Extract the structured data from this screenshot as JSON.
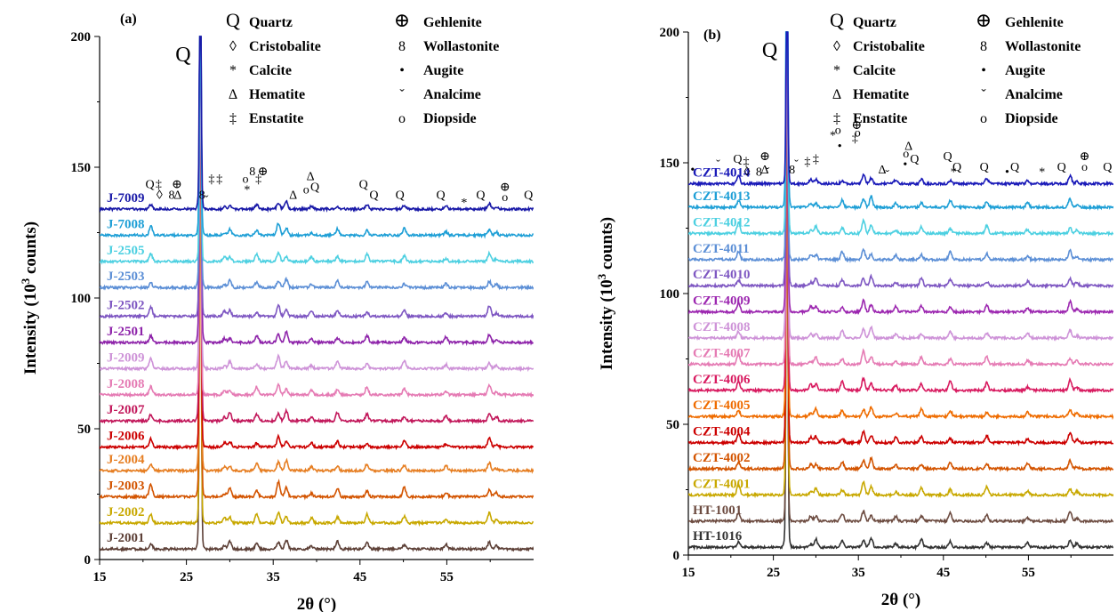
{
  "chart_data": [
    {
      "panel": "(a)",
      "type": "line",
      "xlabel": "2θ (°)",
      "ylabel_main": "Intensity (10",
      "ylabel_sup": "3",
      "ylabel_tail": " counts)",
      "xlim": [
        15,
        65
      ],
      "ylim": [
        0,
        200
      ],
      "xticks": [
        15,
        25,
        35,
        45,
        55
      ],
      "yticks": [
        0,
        50,
        100,
        150,
        200
      ],
      "big_peak_label": "Q",
      "series": [
        {
          "name": "J-2001",
          "offset": 4,
          "color": "#5d4037",
          "quartz": 1.0,
          "scale": 1.0
        },
        {
          "name": "J-2002",
          "offset": 14,
          "color": "#c8a800",
          "quartz": 0.8,
          "scale": 1.1
        },
        {
          "name": "J-2003",
          "offset": 24,
          "color": "#d35400",
          "quartz": 0.9,
          "scale": 1.2
        },
        {
          "name": "J-2004",
          "offset": 34,
          "color": "#e67e22",
          "quartz": 0.85,
          "scale": 1.0
        },
        {
          "name": "J-2006",
          "offset": 43,
          "color": "#cc0000",
          "quartz": 0.9,
          "scale": 0.9
        },
        {
          "name": "J-2007",
          "offset": 53,
          "color": "#c2185b",
          "quartz": 1.0,
          "scale": 1.1
        },
        {
          "name": "J-2008",
          "offset": 63,
          "color": "#e57bb4",
          "quartz": 0.8,
          "scale": 1.0
        },
        {
          "name": "J-2009",
          "offset": 73,
          "color": "#ce93d8",
          "quartz": 0.8,
          "scale": 1.0
        },
        {
          "name": "J-2501",
          "offset": 83,
          "color": "#8e24aa",
          "quartz": 0.9,
          "scale": 1.0
        },
        {
          "name": "J-2502",
          "offset": 93,
          "color": "#7e57c2",
          "quartz": 1.0,
          "scale": 1.0
        },
        {
          "name": "J-2503",
          "offset": 104,
          "color": "#5c8fd6",
          "quartz": 0.7,
          "scale": 0.9
        },
        {
          "name": "J-2505",
          "offset": 114,
          "color": "#4dd0e1",
          "quartz": 0.7,
          "scale": 0.9
        },
        {
          "name": "J-7008",
          "offset": 124,
          "color": "#1e9fd6",
          "quartz": 0.7,
          "scale": 0.9
        },
        {
          "name": "J-7009",
          "offset": 134,
          "color": "#1a1aa8",
          "quartz": 0.7,
          "scale": 0.7
        }
      ],
      "peaks_2theta": [
        20.9,
        26.6,
        29.4,
        30.0,
        33.1,
        35.6,
        36.5,
        39.4,
        42.4,
        45.8,
        50.1,
        54.9,
        59.9,
        60.7
      ],
      "annotations": [
        {
          "t": "Q",
          "x": 20.8,
          "y": 142
        },
        {
          "t": "‡",
          "x": 21.8,
          "y": 142
        },
        {
          "t": "◊",
          "x": 21.9,
          "y": 138
        },
        {
          "t": "8",
          "x": 23.3,
          "y": 138
        },
        {
          "t": "Δ",
          "x": 24.0,
          "y": 138
        },
        {
          "t": "⊕",
          "x": 23.9,
          "y": 142
        },
        {
          "t": "8",
          "x": 26.8,
          "y": 138
        },
        {
          "t": "ˇ",
          "x": 27.3,
          "y": 136
        },
        {
          "t": "‡",
          "x": 27.9,
          "y": 144
        },
        {
          "t": "‡",
          "x": 28.8,
          "y": 144
        },
        {
          "t": "*",
          "x": 32.0,
          "y": 140
        },
        {
          "t": "8",
          "x": 32.6,
          "y": 147
        },
        {
          "t": "o",
          "x": 31.8,
          "y": 144
        },
        {
          "t": "⊕",
          "x": 33.8,
          "y": 147
        },
        {
          "t": "‡",
          "x": 33.3,
          "y": 144
        },
        {
          "t": "Δ",
          "x": 39.3,
          "y": 145
        },
        {
          "t": "Q",
          "x": 39.8,
          "y": 141
        },
        {
          "t": "Δ",
          "x": 37.3,
          "y": 138
        },
        {
          "t": "o",
          "x": 38.8,
          "y": 140
        },
        {
          "t": "Q",
          "x": 45.4,
          "y": 142
        },
        {
          "t": "Q",
          "x": 46.6,
          "y": 138
        },
        {
          "t": "Q",
          "x": 49.6,
          "y": 138
        },
        {
          "t": "Q",
          "x": 54.3,
          "y": 138
        },
        {
          "t": "*",
          "x": 57.0,
          "y": 135
        },
        {
          "t": "Q",
          "x": 58.9,
          "y": 138
        },
        {
          "t": "⊕",
          "x": 61.7,
          "y": 141
        },
        {
          "t": "o",
          "x": 61.7,
          "y": 137
        },
        {
          "t": "Q",
          "x": 64.4,
          "y": 138
        }
      ]
    },
    {
      "panel": "(b)",
      "type": "line",
      "xlabel": "2θ (°)",
      "ylabel_main": "Intensity (10",
      "ylabel_sup": "3",
      "ylabel_tail": " counts)",
      "xlim": [
        15,
        65
      ],
      "ylim": [
        0,
        200
      ],
      "xticks": [
        15,
        25,
        35,
        45,
        55
      ],
      "yticks": [
        0,
        50,
        100,
        150,
        200
      ],
      "big_peak_label": "Q",
      "series": [
        {
          "name": "HT-1016",
          "offset": 3,
          "color": "#333333",
          "quartz": 1.0,
          "scale": 1.0
        },
        {
          "name": "HT-1001",
          "offset": 13,
          "color": "#6d4c41",
          "quartz": 0.9,
          "scale": 1.0
        },
        {
          "name": "CZT-4001",
          "offset": 23,
          "color": "#c8a800",
          "quartz": 0.9,
          "scale": 1.0
        },
        {
          "name": "CZT-4002",
          "offset": 33,
          "color": "#d35400",
          "quartz": 0.9,
          "scale": 1.0
        },
        {
          "name": "CZT-4004",
          "offset": 43,
          "color": "#cc0000",
          "quartz": 0.9,
          "scale": 1.0
        },
        {
          "name": "CZT-4005",
          "offset": 53,
          "color": "#ef6c00",
          "quartz": 0.9,
          "scale": 1.0
        },
        {
          "name": "CZT-4006",
          "offset": 63,
          "color": "#d81b60",
          "quartz": 1.0,
          "scale": 1.2
        },
        {
          "name": "CZT-4007",
          "offset": 73,
          "color": "#e57bb4",
          "quartz": 0.9,
          "scale": 1.0
        },
        {
          "name": "CZT-4008",
          "offset": 83,
          "color": "#ce93d8",
          "quartz": 0.9,
          "scale": 1.0
        },
        {
          "name": "CZT-4009",
          "offset": 93,
          "color": "#9c27b0",
          "quartz": 0.9,
          "scale": 1.0
        },
        {
          "name": "CZT-4010",
          "offset": 103,
          "color": "#7e57c2",
          "quartz": 0.9,
          "scale": 1.0
        },
        {
          "name": "CZT-4011",
          "offset": 113,
          "color": "#5c8fd6",
          "quartz": 0.9,
          "scale": 1.0
        },
        {
          "name": "CZT-4012",
          "offset": 123,
          "color": "#4dd0e1",
          "quartz": 0.9,
          "scale": 1.0
        },
        {
          "name": "CZT-4013",
          "offset": 133,
          "color": "#1e9fd6",
          "quartz": 0.9,
          "scale": 1.0
        },
        {
          "name": "CZT-4014",
          "offset": 142,
          "color": "#1a1ab8",
          "quartz": 0.6,
          "scale": 0.8
        }
      ],
      "peaks_2theta": [
        20.9,
        26.6,
        29.4,
        30.0,
        33.1,
        35.6,
        36.5,
        39.4,
        42.4,
        45.8,
        50.1,
        54.9,
        59.9,
        60.7
      ],
      "annotations": [
        {
          "t": "•",
          "x": 15.5,
          "y": 146
        },
        {
          "t": "ˇ",
          "x": 18.5,
          "y": 148
        },
        {
          "t": "Q",
          "x": 20.8,
          "y": 150
        },
        {
          "t": "‡",
          "x": 21.8,
          "y": 149
        },
        {
          "t": "◊",
          "x": 21.9,
          "y": 145
        },
        {
          "t": "8",
          "x": 23.3,
          "y": 145
        },
        {
          "t": "Δ",
          "x": 24.0,
          "y": 146
        },
        {
          "t": "⊕",
          "x": 24.0,
          "y": 151
        },
        {
          "t": "ˇ",
          "x": 24.3,
          "y": 145
        },
        {
          "t": "8",
          "x": 27.2,
          "y": 146
        },
        {
          "t": "ˇ",
          "x": 27.7,
          "y": 148
        },
        {
          "t": "‡",
          "x": 29.0,
          "y": 149
        },
        {
          "t": "‡",
          "x": 30.0,
          "y": 150
        },
        {
          "t": "*",
          "x": 32.0,
          "y": 159
        },
        {
          "t": "o",
          "x": 32.6,
          "y": 161
        },
        {
          "t": "•",
          "x": 32.8,
          "y": 155
        },
        {
          "t": "⊕",
          "x": 34.8,
          "y": 163
        },
        {
          "t": "‡",
          "x": 34.6,
          "y": 158
        },
        {
          "t": "o",
          "x": 34.9,
          "y": 160
        },
        {
          "t": "Δ",
          "x": 37.8,
          "y": 146
        },
        {
          "t": "ˇ",
          "x": 38.4,
          "y": 144
        },
        {
          "t": "o",
          "x": 40.6,
          "y": 152
        },
        {
          "t": "Δ",
          "x": 40.9,
          "y": 155
        },
        {
          "t": "•",
          "x": 40.5,
          "y": 148
        },
        {
          "t": "Q",
          "x": 41.6,
          "y": 150
        },
        {
          "t": "Q",
          "x": 45.5,
          "y": 151
        },
        {
          "t": "Q",
          "x": 46.6,
          "y": 147
        },
        {
          "t": "*",
          "x": 46.2,
          "y": 145
        },
        {
          "t": "Q",
          "x": 49.8,
          "y": 147
        },
        {
          "t": "Q",
          "x": 53.4,
          "y": 147
        },
        {
          "t": "•",
          "x": 52.5,
          "y": 145
        },
        {
          "t": "*",
          "x": 56.6,
          "y": 145
        },
        {
          "t": "Q",
          "x": 58.9,
          "y": 147
        },
        {
          "t": "⊕",
          "x": 61.6,
          "y": 151
        },
        {
          "t": "o",
          "x": 61.6,
          "y": 147
        },
        {
          "t": "Q",
          "x": 64.3,
          "y": 147
        }
      ]
    }
  ],
  "legend": {
    "col1": [
      {
        "sym": "Q",
        "label": "Quartz"
      },
      {
        "sym": "◊",
        "label": "Cristobalite"
      },
      {
        "sym": "*",
        "label": "Calcite"
      },
      {
        "sym": "Δ",
        "label": "Hematite"
      },
      {
        "sym": "‡",
        "label": "Enstatite"
      }
    ],
    "col2": [
      {
        "sym": "⊕",
        "label": "Gehlenite"
      },
      {
        "sym": "8",
        "label": "Wollastonite"
      },
      {
        "sym": "•",
        "label": "Augite"
      },
      {
        "sym": "ˇ",
        "label": "Analcime"
      },
      {
        "sym": "o",
        "label": "Diopside"
      }
    ]
  }
}
